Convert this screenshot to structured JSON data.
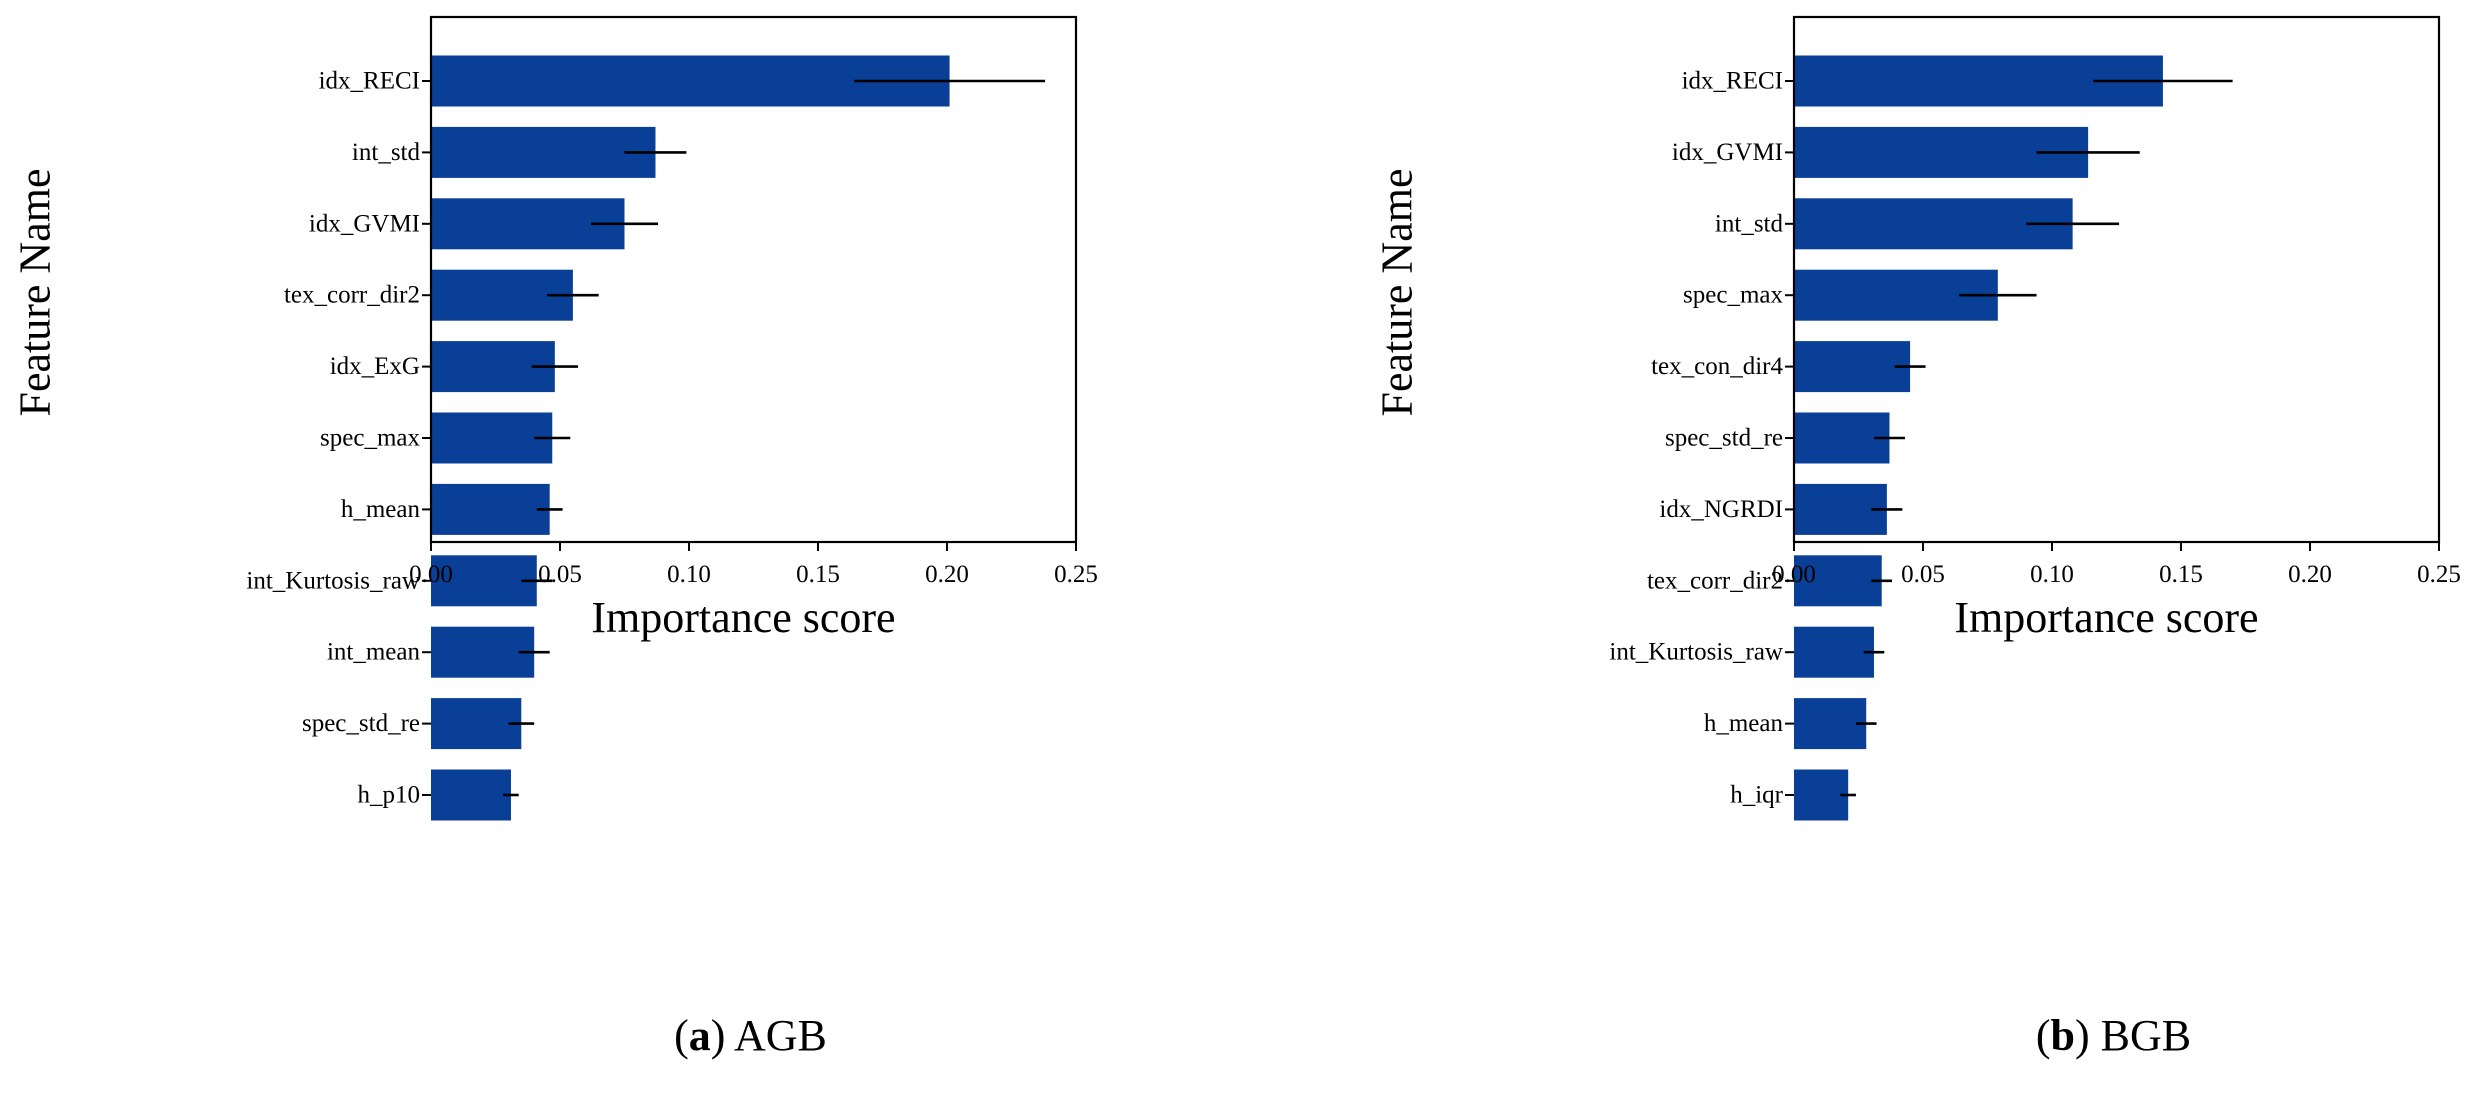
{
  "colors": {
    "bar": "#0a3f97",
    "error_bar": "#000000",
    "axis": "#000000"
  },
  "chart_data": [
    {
      "type": "bar",
      "orientation": "horizontal",
      "caption_letter": "a",
      "caption_text": "AGB",
      "xlabel": "Importance score",
      "ylabel": "Feature Name",
      "xlim": [
        0,
        0.25
      ],
      "xticks": [
        "0.00",
        "0.05",
        "0.10",
        "0.15",
        "0.20",
        "0.25"
      ],
      "categories": [
        "idx_RECI",
        "int_std",
        "idx_GVMI",
        "tex_corr_dir2",
        "idx_ExG",
        "spec_max",
        "h_mean",
        "int_Kurtosis_raw",
        "int_mean",
        "spec_std_re",
        "h_p10"
      ],
      "values": [
        0.201,
        0.087,
        0.075,
        0.055,
        0.048,
        0.047,
        0.046,
        0.041,
        0.04,
        0.035,
        0.031
      ],
      "errors": [
        0.037,
        0.012,
        0.013,
        0.01,
        0.009,
        0.007,
        0.005,
        0.006,
        0.006,
        0.005,
        0.003
      ],
      "grid": false
    },
    {
      "type": "bar",
      "orientation": "horizontal",
      "caption_letter": "b",
      "caption_text": "BGB",
      "xlabel": "Importance score",
      "ylabel": "Feature Name",
      "xlim": [
        0,
        0.25
      ],
      "xticks": [
        "0.00",
        "0.05",
        "0.10",
        "0.15",
        "0.20",
        "0.25"
      ],
      "categories": [
        "idx_RECI",
        "idx_GVMI",
        "int_std",
        "spec_max",
        "tex_con_dir4",
        "spec_std_re",
        "idx_NGRDI",
        "tex_corr_dir2",
        "int_Kurtosis_raw",
        "h_mean",
        "h_iqr"
      ],
      "values": [
        0.143,
        0.114,
        0.108,
        0.079,
        0.045,
        0.037,
        0.036,
        0.034,
        0.031,
        0.028,
        0.021
      ],
      "errors": [
        0.027,
        0.02,
        0.018,
        0.015,
        0.006,
        0.006,
        0.006,
        0.004,
        0.004,
        0.004,
        0.003
      ],
      "grid": false
    }
  ]
}
